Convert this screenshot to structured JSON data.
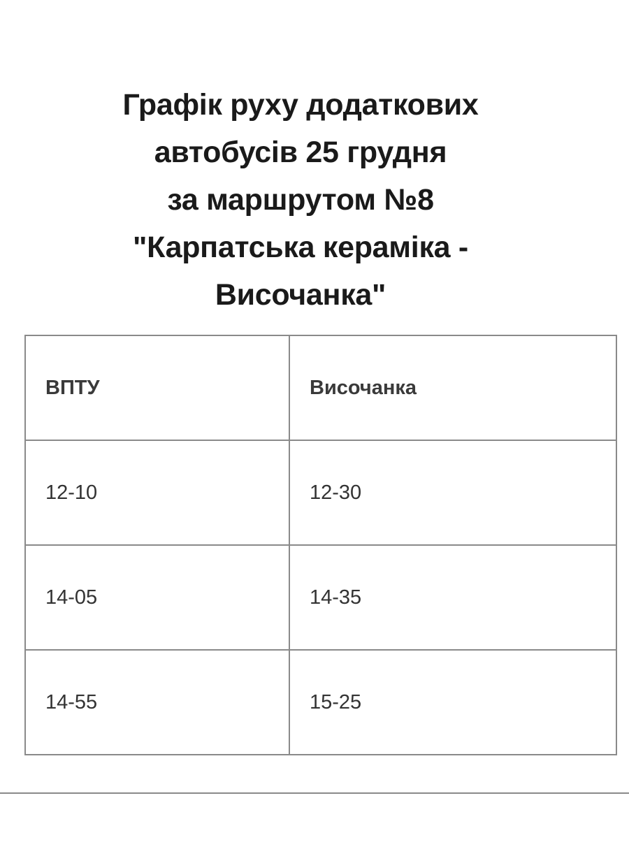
{
  "title_lines": [
    "Графік руху додаткових",
    "автобусів 25 грудня",
    "за маршрутом №8",
    "\"Карпатська кераміка -",
    "Височанка\""
  ],
  "table": {
    "headers": [
      "ВПТУ",
      "Височанка"
    ],
    "rows": [
      [
        "12-10",
        "12-30"
      ],
      [
        "14-05",
        "14-35"
      ],
      [
        "14-55",
        "15-25"
      ]
    ]
  }
}
